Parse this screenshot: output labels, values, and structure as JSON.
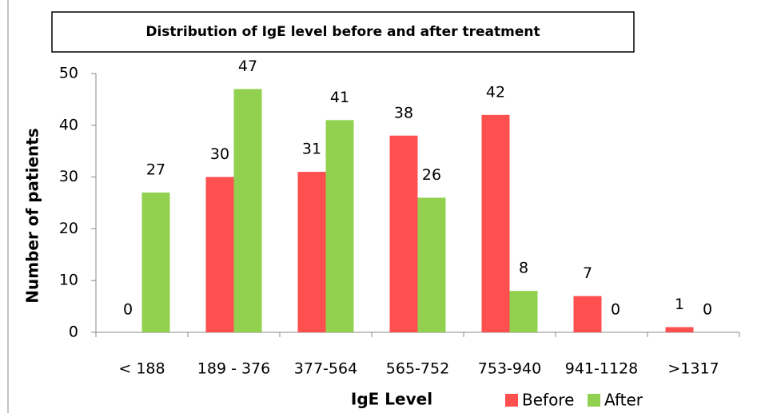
{
  "chart_data": {
    "type": "bar",
    "title": "Distribution of IgE level before and after treatment",
    "x_label": "IgE Level",
    "y_label": "Number of patients",
    "categories": [
      "< 188",
      "189 - 376",
      "377-564",
      "565-752",
      "753-940",
      "941-1128",
      ">1317"
    ],
    "series": [
      {
        "name": "Before",
        "color": "#ff4f4f",
        "values": [
          0,
          30,
          31,
          38,
          42,
          7,
          1
        ]
      },
      {
        "name": "After",
        "color": "#92d050",
        "values": [
          27,
          47,
          41,
          26,
          8,
          0,
          0
        ]
      }
    ],
    "ylim": [
      0,
      50
    ],
    "yticks": [
      0,
      10,
      20,
      30,
      40,
      50
    ],
    "legend": "bottom"
  }
}
